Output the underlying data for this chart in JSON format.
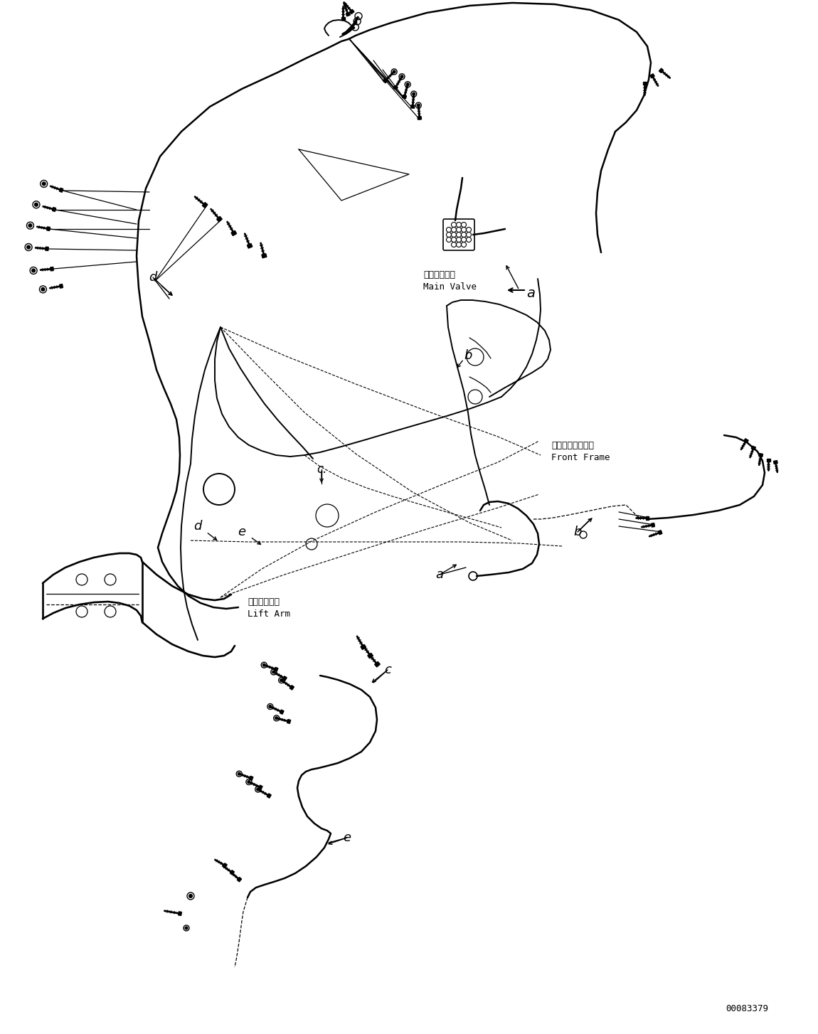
{
  "background_color": "#ffffff",
  "line_color": "#000000",
  "fig_width": 11.5,
  "fig_height": 14.54,
  "dpi": 100,
  "part_number": "00083379",
  "labels": {
    "main_valve_jp": "メインバルブ",
    "main_valve_en": "Main Valve",
    "front_frame_jp": "フロントフレーム",
    "front_frame_en": "Front Frame",
    "lift_arm_jp": "リフトアーム",
    "lift_arm_en": "Lift Arm"
  }
}
